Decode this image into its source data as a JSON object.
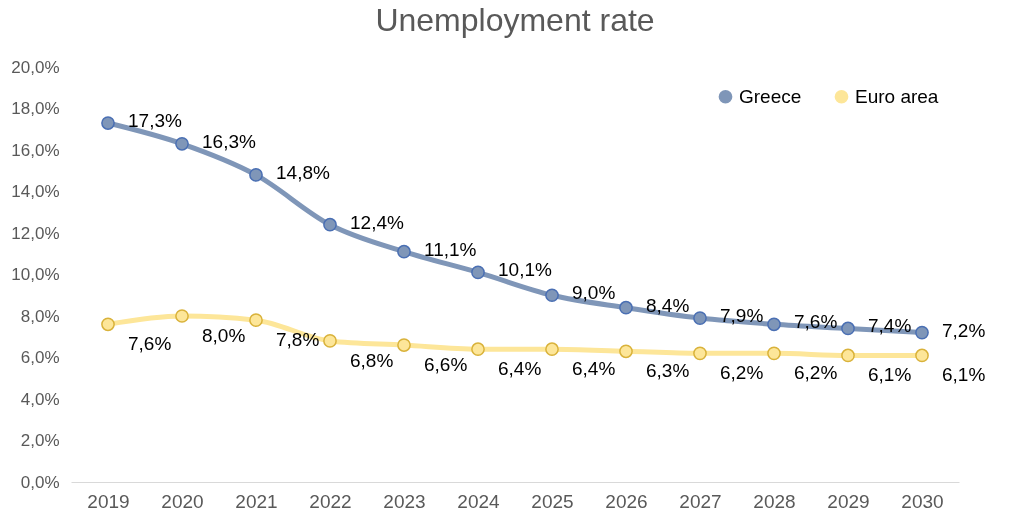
{
  "chart_data": {
    "type": "line",
    "title": "Unemployment rate",
    "categories": [
      "2019",
      "2020",
      "2021",
      "2022",
      "2023",
      "2024",
      "2025",
      "2026",
      "2027",
      "2028",
      "2029",
      "2030"
    ],
    "series": [
      {
        "name": "Greece",
        "color": "#7f96b8",
        "values": [
          17.3,
          16.3,
          14.8,
          12.4,
          11.1,
          10.1,
          9.0,
          8.4,
          7.9,
          7.6,
          7.4,
          7.2
        ],
        "value_labels": [
          "17,3%",
          "16,3%",
          "14,8%",
          "12,4%",
          "11,1%",
          "10,1%",
          "9,0%",
          "8,4%",
          "7,9%",
          "7,6%",
          "7,4%",
          "7,2%"
        ]
      },
      {
        "name": "Euro area",
        "color": "#fde699",
        "values": [
          7.6,
          8.0,
          7.8,
          6.8,
          6.6,
          6.4,
          6.4,
          6.3,
          6.2,
          6.2,
          6.1,
          6.1
        ],
        "value_labels": [
          "7,6%",
          "8,0%",
          "7,8%",
          "6,8%",
          "6,6%",
          "6,4%",
          "6,4%",
          "6,3%",
          "6,2%",
          "6,2%",
          "6,1%",
          "6,1%"
        ]
      }
    ],
    "ylim": [
      0,
      20
    ],
    "yticks": [
      {
        "value": 0,
        "label": "0,0%"
      },
      {
        "value": 2,
        "label": "2,0%"
      },
      {
        "value": 4,
        "label": "4,0%"
      },
      {
        "value": 6,
        "label": "6,0%"
      },
      {
        "value": 8,
        "label": "8,0%"
      },
      {
        "value": 10,
        "label": "10,0%"
      },
      {
        "value": 12,
        "label": "12,0%"
      },
      {
        "value": 14,
        "label": "14,0%"
      },
      {
        "value": 16,
        "label": "16,0%"
      },
      {
        "value": 18,
        "label": "18,0%"
      },
      {
        "value": 20,
        "label": "20,0%"
      }
    ],
    "legend": "top right",
    "marker": "circle",
    "line_style": "solid",
    "grid": false
  }
}
